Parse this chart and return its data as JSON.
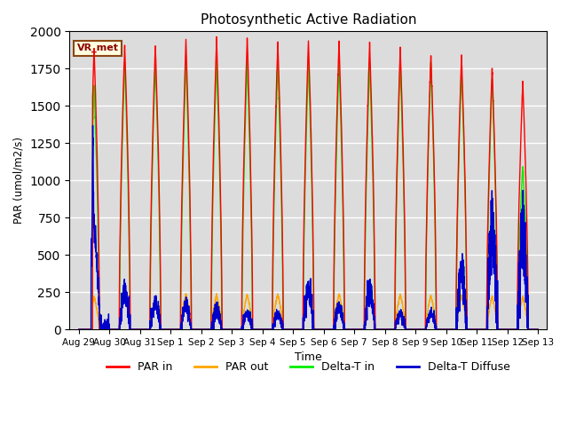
{
  "title": "Photosynthetic Active Radiation",
  "xlabel": "Time",
  "ylabel": "PAR (umol/m2/s)",
  "ylim": [
    0,
    2000
  ],
  "annotation_text": "VR_met",
  "annotation_bbox": {
    "facecolor": "lightyellow",
    "edgecolor": "#8B4513",
    "linewidth": 1.5
  },
  "colors": {
    "par_in": "#FF0000",
    "par_out": "#FFA500",
    "delta_t_in": "#00EE00",
    "delta_t_diffuse": "#0000CC"
  },
  "legend_labels": [
    "PAR in",
    "PAR out",
    "Delta-T in",
    "Delta-T Diffuse"
  ],
  "bg_color": "#DCDCDC",
  "grid_color": "white",
  "n_days": 15,
  "samples_per_day": 288,
  "daily_peaks_par_in": [
    1880,
    1910,
    1910,
    1940,
    1950,
    1960,
    1930,
    1940,
    1930,
    1920,
    1890,
    1850,
    1840,
    1750,
    1660
  ],
  "daily_peaks_par_out": [
    220,
    230,
    200,
    235,
    235,
    235,
    240,
    245,
    240,
    235,
    235,
    230,
    230,
    225,
    220
  ],
  "daily_peaks_dt_in": [
    1630,
    1800,
    1800,
    1800,
    1800,
    1800,
    1790,
    1790,
    1790,
    1790,
    1790,
    1780,
    1760,
    1680,
    1100
  ],
  "daily_peaks_dt_diff": [
    700,
    270,
    180,
    170,
    155,
    110,
    110,
    290,
    155,
    290,
    110,
    110,
    430,
    760,
    730
  ],
  "tick_labels": [
    "Aug 29",
    "Aug 30",
    "Aug 31",
    "Sep 1",
    "Sep 2",
    "Sep 3",
    "Sep 4",
    "Sep 5",
    "Sep 6",
    "Sep 7",
    "Sep 8",
    "Sep 9",
    "Sep 10",
    "Sep 11",
    "Sep 12",
    "Sep 13"
  ],
  "linewidth": 1.0,
  "figsize": [
    6.4,
    4.8
  ],
  "dpi": 100
}
